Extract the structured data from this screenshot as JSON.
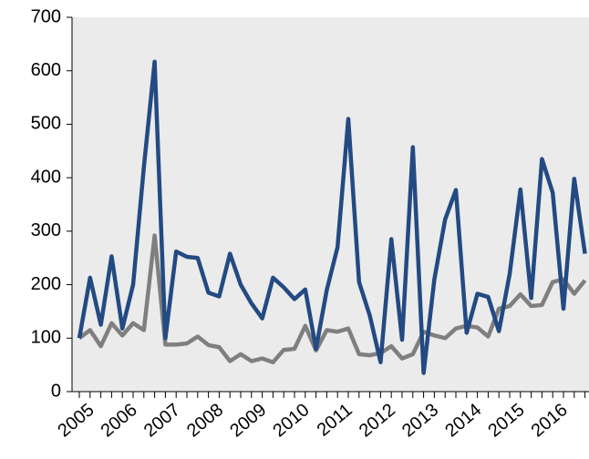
{
  "chart_data": {
    "type": "line",
    "categories": [
      "2005",
      null,
      null,
      null,
      "2006",
      null,
      null,
      null,
      "2007",
      null,
      null,
      null,
      "2008",
      null,
      null,
      null,
      "2009",
      null,
      null,
      null,
      "2010",
      null,
      null,
      null,
      "2011",
      null,
      null,
      null,
      "2012",
      null,
      null,
      null,
      "2013",
      null,
      null,
      null,
      "2014",
      null,
      null,
      null,
      "2015",
      null,
      null,
      null,
      "2016",
      null,
      null,
      null
    ],
    "series": [
      {
        "color": "#234a82",
        "values": [
          100,
          213,
          125,
          253,
          118,
          200,
          420,
          617,
          100,
          262,
          252,
          250,
          185,
          178,
          258,
          200,
          165,
          137,
          213,
          195,
          173,
          191,
          80,
          190,
          270,
          510,
          205,
          142,
          55,
          285,
          97,
          457,
          35,
          210,
          322,
          377,
          110,
          183,
          177,
          113,
          220,
          378,
          175,
          435,
          372,
          155,
          398,
          258
        ]
      },
      {
        "color": "#7f7f7f",
        "values": [
          100,
          115,
          85,
          128,
          105,
          128,
          115,
          292,
          88,
          88,
          90,
          103,
          87,
          83,
          57,
          70,
          57,
          62,
          55,
          78,
          80,
          123,
          77,
          115,
          112,
          118,
          70,
          68,
          72,
          85,
          62,
          70,
          112,
          105,
          100,
          118,
          123,
          120,
          103,
          155,
          160,
          182,
          160,
          162,
          205,
          210,
          183,
          208
        ]
      }
    ],
    "ylim": [
      0,
      700
    ],
    "yticks": [
      0,
      100,
      200,
      300,
      400,
      500,
      600,
      700
    ]
  }
}
